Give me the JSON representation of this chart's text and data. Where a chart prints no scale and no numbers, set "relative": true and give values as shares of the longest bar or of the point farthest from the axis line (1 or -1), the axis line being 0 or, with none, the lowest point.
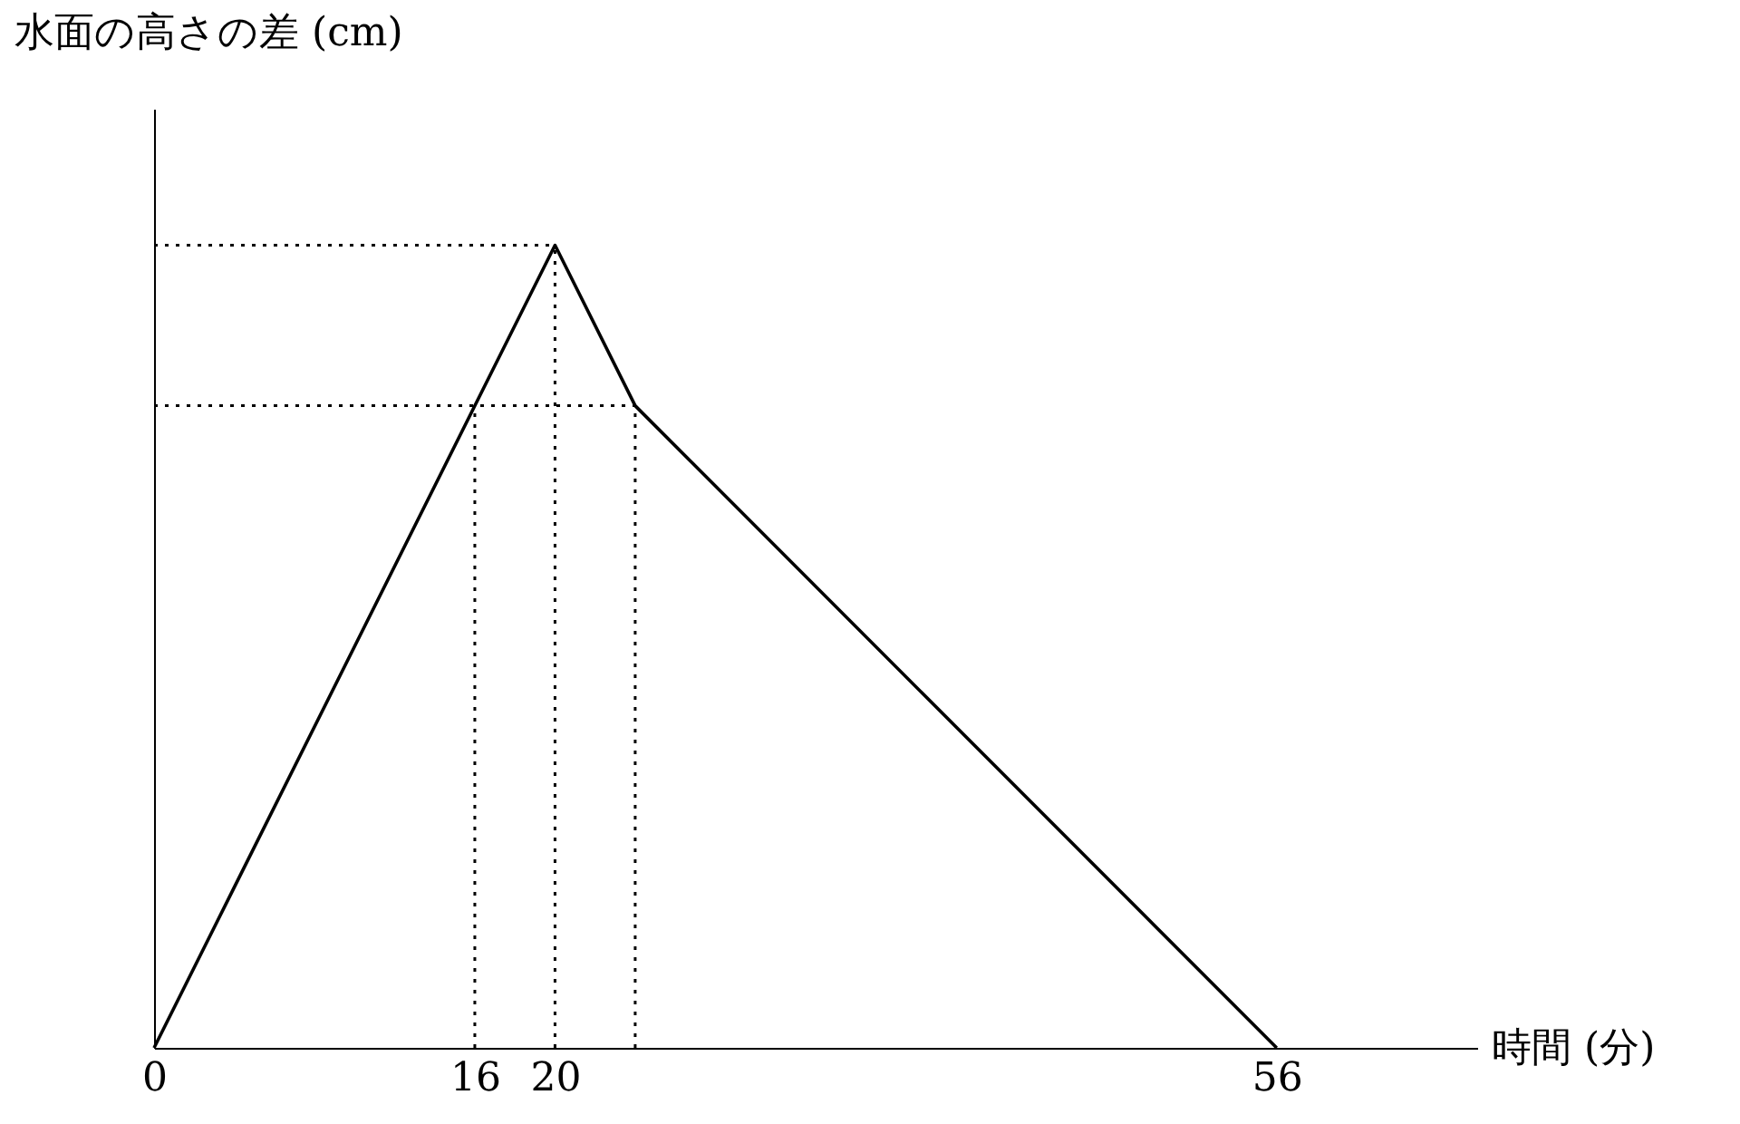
{
  "chart_data": {
    "type": "line",
    "xlabel": "時間 (分)",
    "ylabel": "水面の高さの差 (cm)",
    "relative": true,
    "x": [
      0,
      20,
      24,
      56
    ],
    "values": [
      0,
      1,
      0.8,
      0
    ],
    "color": "#000000",
    "line_style": "solid",
    "xlim": [
      0,
      66
    ],
    "xticks": [
      0,
      16,
      20,
      56
    ],
    "ref_lines": [
      {
        "axis": "x",
        "value": 16,
        "line_style": "dotted"
      },
      {
        "axis": "x",
        "value": 20,
        "line_style": "dotted"
      },
      {
        "axis": "x",
        "value": 24,
        "line_style": "dotted"
      },
      {
        "axis": "y",
        "value": 1,
        "line_style": "dotted"
      },
      {
        "axis": "y",
        "value": 0.8,
        "line_style": "dotted"
      }
    ]
  }
}
